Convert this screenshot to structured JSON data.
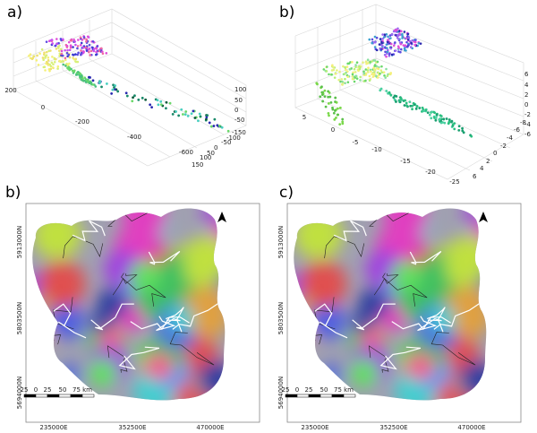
{
  "panels": [
    {
      "label": "a)",
      "ticks_x": [
        "200",
        "0",
        "-200",
        "-400",
        "-600"
      ],
      "ticks_depth": [
        "150",
        "100",
        "50",
        "0",
        "-50",
        "-100",
        "-150"
      ],
      "ticks_z": [
        "100",
        "50",
        "0",
        "-50"
      ]
    },
    {
      "label": "b)",
      "ticks_x": [
        "5",
        "0",
        "-5",
        "-10",
        "-15",
        "-20",
        "-25"
      ],
      "ticks_depth": [
        "6",
        "4",
        "2",
        "0",
        "-2",
        "-4",
        "-6",
        "-8"
      ],
      "ticks_z": [
        "6",
        "4",
        "2",
        "0",
        "-2",
        "-4",
        "-6"
      ]
    },
    {
      "label": "b)",
      "northings": [
        "5913000N",
        "5803500N",
        "5694000N"
      ],
      "eastings": [
        "235000E",
        "352500E",
        "470000E"
      ],
      "scale": [
        "25",
        "0",
        "25",
        "50",
        "75 km"
      ]
    },
    {
      "label": "c)",
      "northings": [
        "5913000N",
        "5803500N",
        "5694000N"
      ],
      "eastings": [
        "235000E",
        "352500E",
        "470000E"
      ],
      "scale": [
        "25",
        "0",
        "25",
        "50",
        "75 km"
      ]
    }
  ]
}
